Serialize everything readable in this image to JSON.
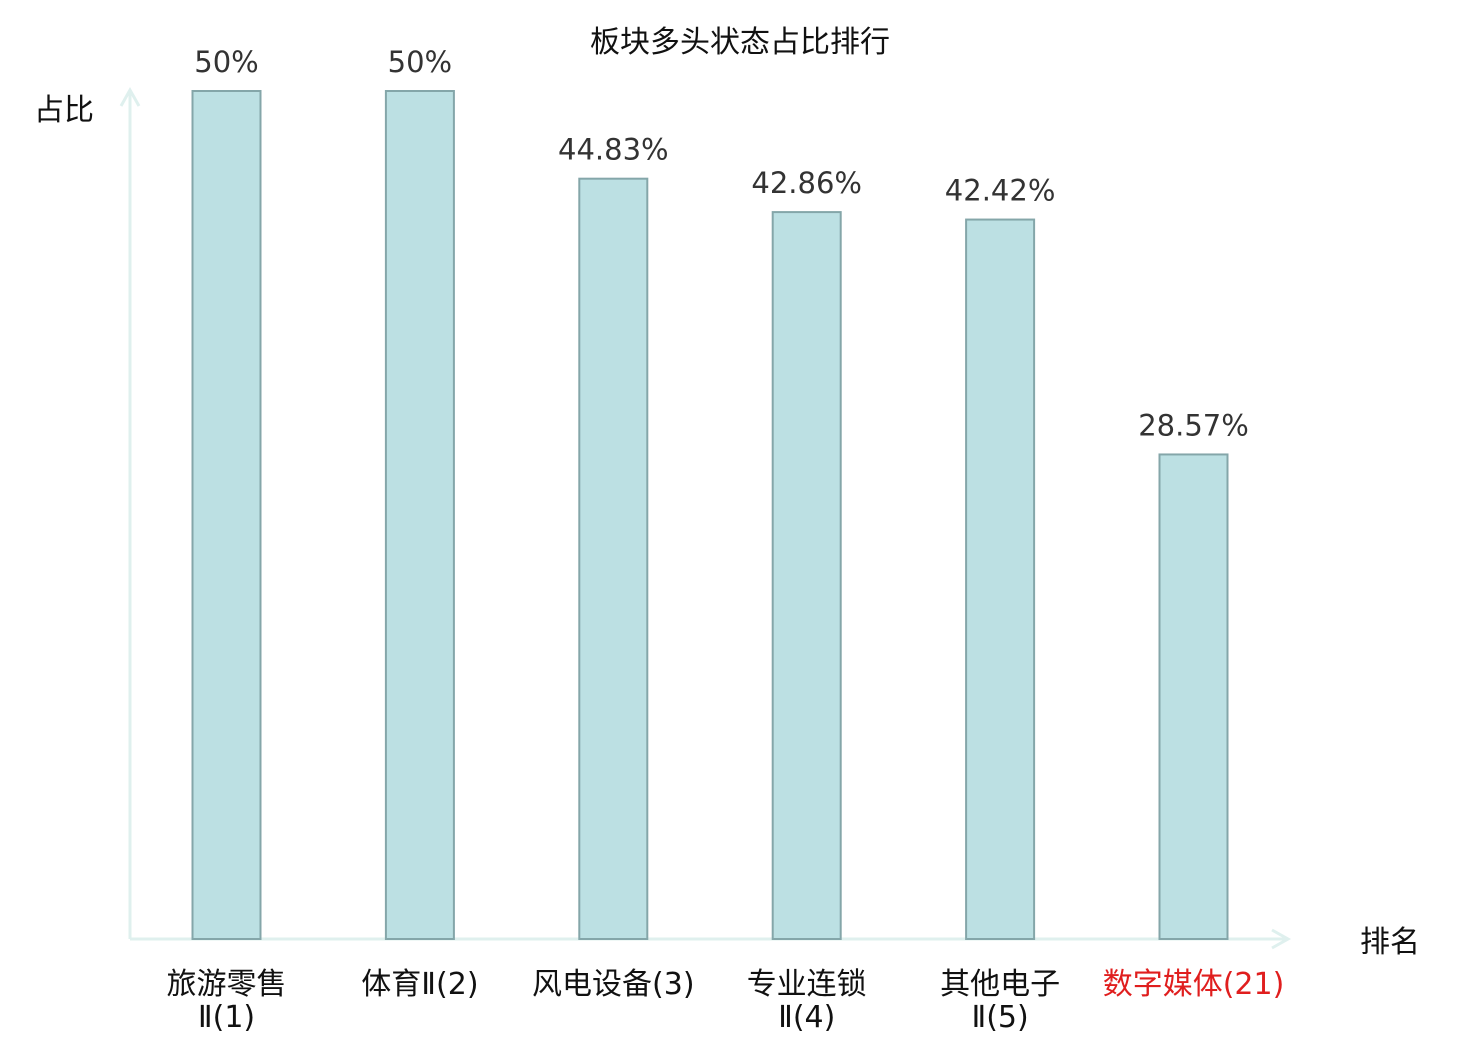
{
  "chart_data": {
    "type": "bar",
    "title": "板块多头状态占比排行",
    "ylabel": "占比",
    "xlabel": "排名",
    "ylim": [
      0,
      50
    ],
    "grid": false,
    "legend": "none",
    "categories": [
      [
        "旅游零售",
        "Ⅱ(1)"
      ],
      [
        "体育Ⅱ(2)"
      ],
      [
        "风电设备(3)"
      ],
      [
        "专业连锁",
        "Ⅱ(4)"
      ],
      [
        "其他电子",
        "Ⅱ(5)"
      ],
      [
        "数字媒体(21)"
      ]
    ],
    "values": [
      50,
      50,
      44.83,
      42.86,
      42.42,
      28.57
    ],
    "value_labels": [
      "50%",
      "50%",
      "44.83%",
      "42.86%",
      "42.42%",
      "28.57%"
    ],
    "highlight_index": 5
  },
  "colors": {
    "bar_fill": "#bce0e3",
    "bar_stroke": "#84a6a9",
    "axis": "#dff0ee",
    "text": "#111111",
    "value_text": "#333333",
    "highlight_text": "#e01e1e"
  }
}
